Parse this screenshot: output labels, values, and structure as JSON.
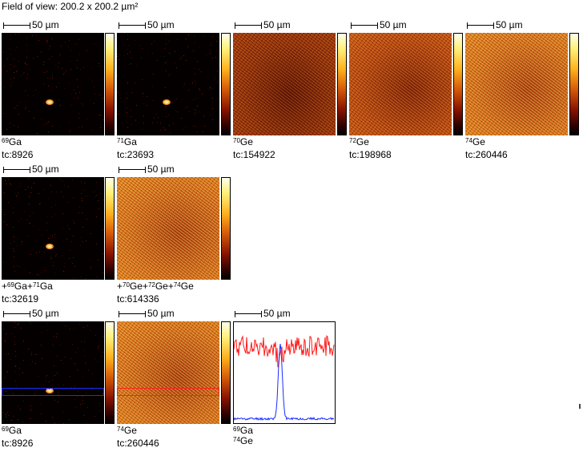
{
  "field_of_view": "Field of view: 200.2 x 200.2 µm²",
  "scale_label": "50 µm",
  "rows": [
    {
      "panels": [
        {
          "iso": "69",
          "el": "Ga",
          "tc": "tc:8926"
        },
        {
          "iso": "71",
          "el": "Ga",
          "tc": "tc:23693"
        },
        {
          "iso": "70",
          "el": "Ge",
          "tc": "tc:154922"
        },
        {
          "iso": "72",
          "el": "Ge",
          "tc": "tc:198968"
        },
        {
          "iso": "74",
          "el": "Ge",
          "tc": "tc:260446"
        }
      ]
    },
    {
      "panels": [
        {
          "label_parts": [
            "+",
            "69",
            "Ga+",
            "71",
            "Ga"
          ],
          "tc": "tc:32619"
        },
        {
          "label_parts": [
            "+",
            "70",
            "Ge+",
            "72",
            "Ge+",
            "74",
            "Ge"
          ],
          "tc": "tc:614336"
        }
      ]
    },
    {
      "panels": [
        {
          "iso": "69",
          "el": "Ga",
          "tc": "tc:8926",
          "roi_color": "#1a2cff"
        },
        {
          "iso": "74",
          "el": "Ge",
          "tc": "tc:260446",
          "roi_color": "#ff2020"
        },
        {
          "linescan_labels": [
            {
              "iso": "69",
              "el": "Ga"
            },
            {
              "iso": "74",
              "el": "Ge"
            }
          ]
        }
      ]
    }
  ],
  "linescan": {
    "series_colors": {
      "Ga": "#1a2cff",
      "Ge": "#ff1a1a"
    }
  }
}
